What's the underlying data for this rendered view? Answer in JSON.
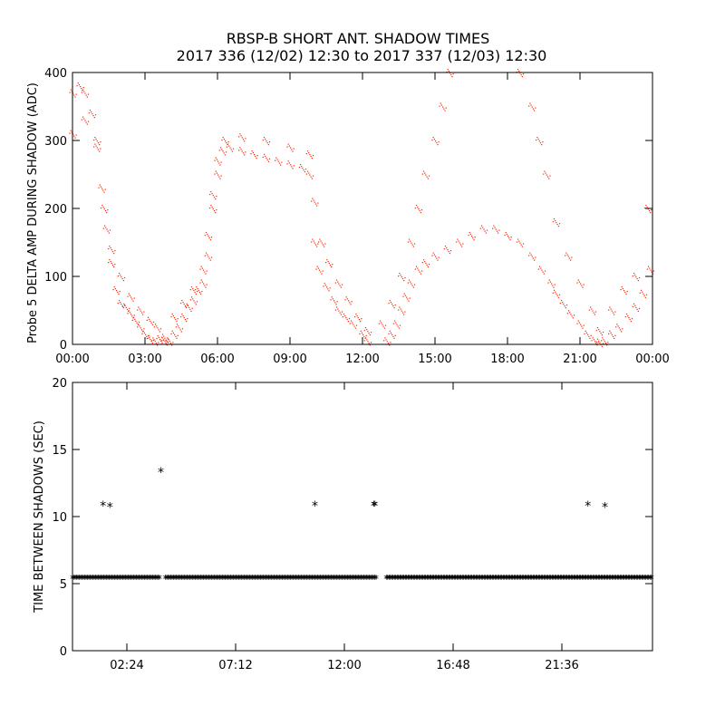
{
  "title_line1": "RBSP-B SHORT ANT. SHADOW TIMES",
  "title_line2": "2017 336 (12/02) 12:30 to 2017 337 (12/03) 12:30",
  "colors": {
    "top_series": "#ff2200",
    "bottom_series": "#000000",
    "axes": "#000000"
  },
  "chart_data": [
    {
      "type": "scatter",
      "ylabel": "Probe 5 DELTA AMP DURING SHADOW (ADC)",
      "xlim": [
        0,
        24
      ],
      "ylim": [
        0,
        400
      ],
      "x_unit": "hours",
      "x_ticks": [
        "00:00",
        "03:00",
        "06:00",
        "09:00",
        "12:00",
        "15:00",
        "18:00",
        "21:00",
        "00:00"
      ],
      "y_ticks": [
        "0",
        "100",
        "200",
        "300",
        "400"
      ],
      "series": [
        {
          "marker": "dot",
          "color": "#ff2200",
          "x": [
            0.0,
            0.3,
            0.5,
            0.8,
            1.0,
            1.2,
            1.4,
            1.6,
            1.8,
            2.0,
            2.2,
            2.4,
            2.6,
            2.8,
            3.0,
            3.2,
            3.4,
            3.6,
            3.8,
            4.0,
            4.2,
            4.4,
            4.6,
            4.8,
            5.0,
            5.2,
            5.4,
            5.6,
            5.8,
            6.0,
            6.2,
            6.5,
            7.0,
            7.5,
            8.0,
            8.5,
            9.0,
            9.5,
            9.8,
            10.0,
            10.2,
            10.5,
            10.8,
            11.0,
            11.3,
            11.6,
            12.0,
            12.2,
            13.0,
            13.2,
            13.4,
            13.6,
            13.8,
            14.0,
            14.3,
            14.6,
            15.0,
            15.5,
            16.0,
            16.5,
            17.0,
            17.5,
            18.0,
            18.5,
            19.0,
            19.4,
            19.8,
            20.0,
            20.3,
            20.6,
            21.0,
            21.3,
            21.6,
            21.8,
            22.0,
            22.3,
            22.6,
            23.0,
            23.3,
            23.6,
            23.9
          ],
          "y": [
            370,
            380,
            370,
            340,
            290,
            230,
            170,
            120,
            80,
            60,
            55,
            45,
            35,
            25,
            15,
            8,
            5,
            8,
            5,
            5,
            15,
            25,
            40,
            55,
            65,
            80,
            110,
            160,
            220,
            270,
            285,
            290,
            285,
            280,
            275,
            270,
            265,
            260,
            250,
            150,
            110,
            85,
            65,
            50,
            40,
            30,
            15,
            5,
            5,
            15,
            30,
            50,
            70,
            90,
            110,
            120,
            130,
            140,
            150,
            160,
            170,
            170,
            160,
            150,
            130,
            110,
            90,
            75,
            60,
            45,
            30,
            15,
            5,
            3,
            5,
            15,
            25,
            40,
            55,
            75,
            110
          ]
        },
        {
          "marker": "dot",
          "color": "#ff2200",
          "x": [
            0.0,
            0.5,
            1.0,
            1.3,
            1.6,
            2.0,
            2.4,
            2.8,
            3.2,
            3.5,
            3.8,
            4.2,
            4.6,
            5.0,
            5.4,
            5.6,
            5.8,
            6.0,
            6.3,
            7.0,
            8.0,
            9.0,
            9.8,
            10.0,
            10.3,
            10.6,
            11.0,
            11.4,
            11.8,
            12.2,
            12.8,
            13.2,
            13.6,
            14.0,
            14.3,
            14.6,
            15.0,
            15.3,
            15.6,
            18.5,
            19.0,
            19.3,
            19.6,
            20.0,
            20.5,
            21.0,
            21.5,
            21.8,
            22.3,
            22.8,
            23.3,
            23.8
          ],
          "y": [
            310,
            330,
            300,
            200,
            140,
            100,
            70,
            50,
            35,
            25,
            10,
            40,
            60,
            80,
            90,
            130,
            200,
            250,
            300,
            305,
            300,
            290,
            280,
            210,
            150,
            120,
            90,
            65,
            40,
            20,
            30,
            60,
            100,
            150,
            200,
            250,
            300,
            350,
            400,
            400,
            350,
            300,
            250,
            180,
            130,
            90,
            50,
            20,
            50,
            80,
            100,
            200
          ]
        }
      ]
    },
    {
      "type": "scatter",
      "ylabel": "TIME BETWEEN SHADOWS (SEC)",
      "xlim": [
        0,
        25.6
      ],
      "ylim": [
        0,
        20
      ],
      "x_unit": "hours",
      "x_ticks": [
        "02:24",
        "07:12",
        "12:00",
        "16:48",
        "21:36"
      ],
      "y_ticks": [
        "0",
        "5",
        "10",
        "15",
        "20"
      ],
      "series": [
        {
          "marker": "asterisk",
          "color": "#000000",
          "baseline_value": 5.4,
          "baseline_segments": [
            [
              0.0,
              3.9
            ],
            [
              4.1,
              13.45
            ],
            [
              13.85,
              23.4
            ],
            [
              23.45,
              25.6
            ]
          ],
          "x": [
            1.35,
            1.65,
            3.9,
            10.7,
            13.3,
            13.35,
            22.75,
            23.5
          ],
          "y": [
            10.8,
            10.7,
            13.3,
            10.8,
            10.8,
            10.8,
            10.8,
            10.7
          ]
        }
      ]
    }
  ]
}
